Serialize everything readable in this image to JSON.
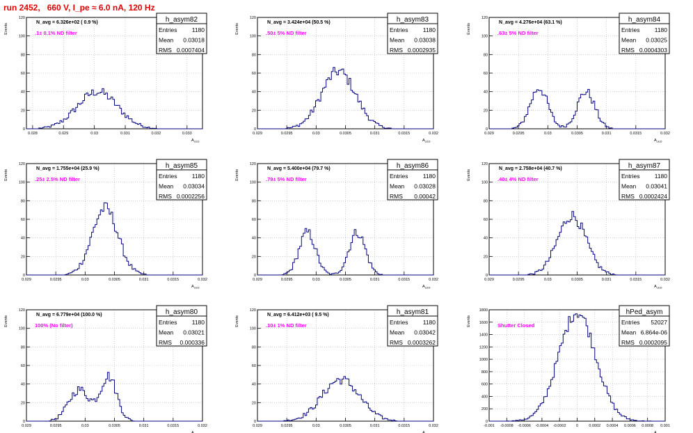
{
  "page_title": "run 2452,   660 V, I_pe ≈ 6.0 nA, 120 Hz",
  "colors": {
    "histogram": "#000080",
    "annotation": "#ff00ff",
    "title_red": "#e00000",
    "grid": "#b0b0b0"
  },
  "ylabel": "Events",
  "xlabel": "A",
  "xlabel_sub": "LED",
  "stats_labels": {
    "entries": "Entries",
    "mean": "Mean",
    "rms": "RMS"
  },
  "chart_data": [
    {
      "type": "bar",
      "name": "h_asym82",
      "navg": "N_avg = 6.326e+02 ( 0.9 %)",
      "note": ".1± 0.1% ND filter",
      "entries": "1180",
      "mean": "0.03018",
      "rms": "0.0007404",
      "xlim": [
        0.0278,
        0.0335
      ],
      "ylim": [
        0,
        120
      ],
      "xticks": [
        0.028,
        0.029,
        0.03,
        0.031,
        0.032,
        0.033
      ],
      "xticklabels": [
        "0.028",
        "0.029",
        "0.03",
        "0.031",
        "0.032",
        "0.033"
      ],
      "yticks": [
        0,
        20,
        40,
        60,
        80,
        100,
        120
      ],
      "peaks": [
        {
          "mu": 0.0301,
          "sigma": 0.00065,
          "amp": 40
        }
      ]
    },
    {
      "type": "bar",
      "name": "h_asym83",
      "navg": "N_avg = 3.424e+04 (50.5 %)",
      "note": ".50± 5% ND filter",
      "entries": "1180",
      "mean": "0.03038",
      "rms": "0.0002935",
      "xlim": [
        0.029,
        0.032
      ],
      "ylim": [
        0,
        120
      ],
      "xticks": [
        0.029,
        0.0295,
        0.03,
        0.0305,
        0.031,
        0.0315,
        0.032
      ],
      "xticklabels": [
        "0.029",
        "0.0295",
        "0.03",
        "0.0305",
        "0.031",
        "0.0315",
        "0.032"
      ],
      "yticks": [
        0,
        20,
        40,
        60,
        80,
        100,
        120
      ],
      "peaks": [
        {
          "mu": 0.03038,
          "sigma": 0.00029,
          "amp": 62
        }
      ]
    },
    {
      "type": "bar",
      "name": "h_asym84",
      "navg": "N_avg = 4.276e+04 (63.1 %)",
      "note": ".63± 5% ND filter",
      "entries": "1180",
      "mean": "0.03025",
      "rms": "0.0004303",
      "xlim": [
        0.029,
        0.032
      ],
      "ylim": [
        0,
        120
      ],
      "xticks": [
        0.029,
        0.0295,
        0.03,
        0.0305,
        0.031,
        0.0315,
        0.032
      ],
      "xticklabels": [
        "0.029",
        "0.0295",
        "0.03",
        "0.0305",
        "0.031",
        "0.0315",
        "0.032"
      ],
      "yticks": [
        0,
        20,
        40,
        60,
        80,
        100,
        120
      ],
      "peaks": [
        {
          "mu": 0.02985,
          "sigma": 0.00015,
          "amp": 44
        },
        {
          "mu": 0.03065,
          "sigma": 0.00015,
          "amp": 40
        }
      ]
    },
    {
      "type": "bar",
      "name": "h_asym85",
      "navg": "N_avg = 1.755e+04 (25.9 %)",
      "note": ".25± 2.5% ND filter",
      "entries": "1180",
      "mean": "0.03034",
      "rms": "0.0002256",
      "xlim": [
        0.029,
        0.032
      ],
      "ylim": [
        0,
        120
      ],
      "xticks": [
        0.029,
        0.0295,
        0.03,
        0.0305,
        0.031,
        0.0315,
        0.032
      ],
      "xticklabels": [
        "0.029",
        "0.0295",
        "0.03",
        "0.0305",
        "0.031",
        "0.0315",
        "0.032"
      ],
      "yticks": [
        0,
        20,
        40,
        60,
        80,
        100,
        120
      ],
      "peaks": [
        {
          "mu": 0.03034,
          "sigma": 0.00022,
          "amp": 72
        }
      ]
    },
    {
      "type": "bar",
      "name": "h_asym86",
      "navg": "N_avg = 5.400e+04 (79.7 %)",
      "note": ".79± 5% ND filter",
      "entries": "1180",
      "mean": "0.03028",
      "rms": "0.00042",
      "xlim": [
        0.029,
        0.032
      ],
      "ylim": [
        0,
        120
      ],
      "xticks": [
        0.029,
        0.0295,
        0.03,
        0.0305,
        0.031,
        0.0315,
        0.032
      ],
      "xticklabels": [
        "0.029",
        "0.0295",
        "0.03",
        "0.0305",
        "0.031",
        "0.0315",
        "0.032"
      ],
      "yticks": [
        0,
        20,
        40,
        60,
        80,
        100,
        120
      ],
      "peaks": [
        {
          "mu": 0.02985,
          "sigma": 0.00014,
          "amp": 46
        },
        {
          "mu": 0.0307,
          "sigma": 0.00014,
          "amp": 46
        }
      ]
    },
    {
      "type": "bar",
      "name": "h_asym87",
      "navg": "N_avg = 2.758e+04 (40.7 %)",
      "note": ".40± 4% ND filter",
      "entries": "1180",
      "mean": "0.03041",
      "rms": "0.0002424",
      "xlim": [
        0.029,
        0.032
      ],
      "ylim": [
        0,
        120
      ],
      "xticks": [
        0.029,
        0.0295,
        0.03,
        0.0305,
        0.031,
        0.0315,
        0.032
      ],
      "xticklabels": [
        "0.029",
        "0.0295",
        "0.03",
        "0.0305",
        "0.031",
        "0.0315",
        "0.032"
      ],
      "yticks": [
        0,
        20,
        40,
        60,
        80,
        100,
        120
      ],
      "peaks": [
        {
          "mu": 0.03041,
          "sigma": 0.00024,
          "amp": 64
        }
      ]
    },
    {
      "type": "bar",
      "name": "h_asym80",
      "navg": "N_avg = 6.779e+04 (100.0 %)",
      "note": "100% (No filter)",
      "entries": "1180",
      "mean": "0.03021",
      "rms": "0.000336",
      "xlim": [
        0.029,
        0.032
      ],
      "ylim": [
        0,
        120
      ],
      "xticks": [
        0.029,
        0.0295,
        0.03,
        0.0305,
        0.031,
        0.0315,
        0.032
      ],
      "xticklabels": [
        "0.029",
        "0.0295",
        "0.03",
        "0.0305",
        "0.031",
        "0.0315",
        "0.032"
      ],
      "yticks": [
        0,
        20,
        40,
        60,
        80,
        100,
        120
      ],
      "peaks": [
        {
          "mu": 0.0299,
          "sigma": 0.00018,
          "amp": 34
        },
        {
          "mu": 0.0304,
          "sigma": 0.00014,
          "amp": 48
        }
      ]
    },
    {
      "type": "bar",
      "name": "h_asym81",
      "navg": "N_avg = 6.412e+03 ( 9.5 %)",
      "note": ".10± 1% ND filter",
      "entries": "1180",
      "mean": "0.03042",
      "rms": "0.0003262",
      "xlim": [
        0.029,
        0.032
      ],
      "ylim": [
        0,
        120
      ],
      "xticks": [
        0.029,
        0.0295,
        0.03,
        0.0305,
        0.031,
        0.0315,
        0.032
      ],
      "xticklabels": [
        "0.029",
        "0.0295",
        "0.03",
        "0.0305",
        "0.031",
        "0.0315",
        "0.032"
      ],
      "yticks": [
        0,
        20,
        40,
        60,
        80,
        100,
        120
      ],
      "peaks": [
        {
          "mu": 0.03042,
          "sigma": 0.00032,
          "amp": 45
        }
      ]
    },
    {
      "type": "bar",
      "name": "hPed_asym",
      "navg": "",
      "note": "Shutter Closed",
      "entries": "52027",
      "mean": "6.864e-06",
      "rms": "0.0002095",
      "xlim": [
        -0.001,
        0.001
      ],
      "ylim": [
        0,
        1800
      ],
      "xticks": [
        -0.001,
        -0.0008,
        -0.0006,
        -0.0004,
        -0.0002,
        0,
        0.0002,
        0.0004,
        0.0006,
        0.0008,
        0.001
      ],
      "xticklabels": [
        "-0.001",
        "-0.0008",
        "-0.0006",
        "-0.0004",
        "-0.0002",
        "0",
        "0.0002",
        "0.0004",
        "0.0006",
        "0.0008",
        "0.001"
      ],
      "yticks": [
        0,
        200,
        400,
        600,
        800,
        1000,
        1200,
        1400,
        1600,
        1800
      ],
      "peaks": [
        {
          "mu": 0.0,
          "sigma": 0.00021,
          "amp": 1760
        }
      ]
    }
  ]
}
